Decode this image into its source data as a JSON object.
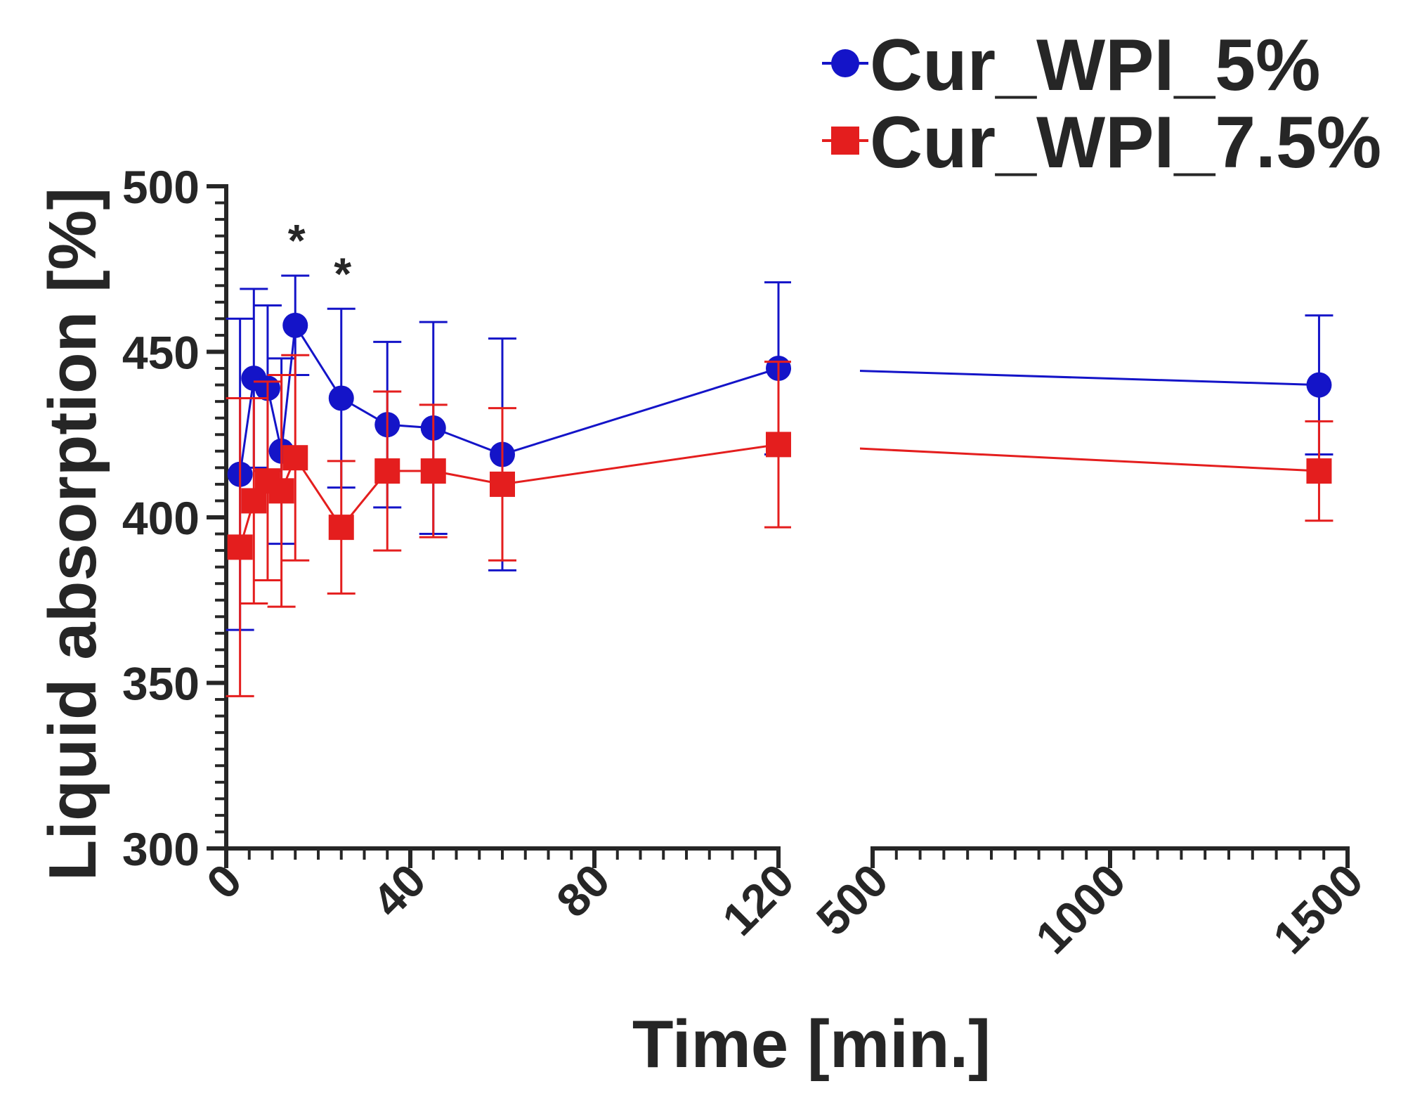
{
  "chart_data": {
    "type": "line",
    "xlabel": "Time [min.]",
    "ylabel": "Liquid absorption [%]",
    "ylim": [
      300,
      500
    ],
    "yticks": [
      "300",
      "350",
      "400",
      "450",
      "500"
    ],
    "x_axis_segments": [
      {
        "range": [
          0,
          120
        ],
        "ticks": [
          "0",
          "40",
          "80",
          "120"
        ]
      },
      {
        "range": [
          500,
          1500
        ],
        "ticks": [
          "500",
          "1000",
          "1500"
        ]
      }
    ],
    "significance": [
      {
        "x": 15,
        "label": "*"
      },
      {
        "x": 25,
        "label": "*"
      }
    ],
    "legend_position": "top-right",
    "series": [
      {
        "name": "Cur_WPI_5%",
        "color": "#1414c8",
        "marker": "circle",
        "points": [
          {
            "x": 3,
            "y": 413,
            "err": 47
          },
          {
            "x": 6,
            "y": 442,
            "err": 27
          },
          {
            "x": 9,
            "y": 439,
            "err": 25
          },
          {
            "x": 12,
            "y": 420,
            "err": 28
          },
          {
            "x": 15,
            "y": 458,
            "err": 15
          },
          {
            "x": 25,
            "y": 436,
            "err": 27
          },
          {
            "x": 35,
            "y": 428,
            "err": 25
          },
          {
            "x": 45,
            "y": 427,
            "err": 32
          },
          {
            "x": 60,
            "y": 419,
            "err": 35
          },
          {
            "x": 120,
            "y": 445,
            "err": 26
          },
          {
            "x": 1440,
            "y": 440,
            "err": 21
          }
        ]
      },
      {
        "name": "Cur_WPI_7.5%",
        "color": "#e41e1e",
        "marker": "square",
        "points": [
          {
            "x": 3,
            "y": 391,
            "err": 45
          },
          {
            "x": 6,
            "y": 405,
            "err": 31
          },
          {
            "x": 9,
            "y": 411,
            "err": 30
          },
          {
            "x": 12,
            "y": 408,
            "err": 35
          },
          {
            "x": 15,
            "y": 418,
            "err": 31
          },
          {
            "x": 25,
            "y": 397,
            "err": 20
          },
          {
            "x": 35,
            "y": 414,
            "err": 24
          },
          {
            "x": 45,
            "y": 414,
            "err": 20
          },
          {
            "x": 60,
            "y": 410,
            "err": 23
          },
          {
            "x": 120,
            "y": 422,
            "err": 25
          },
          {
            "x": 1440,
            "y": 414,
            "err": 15
          }
        ]
      }
    ]
  }
}
